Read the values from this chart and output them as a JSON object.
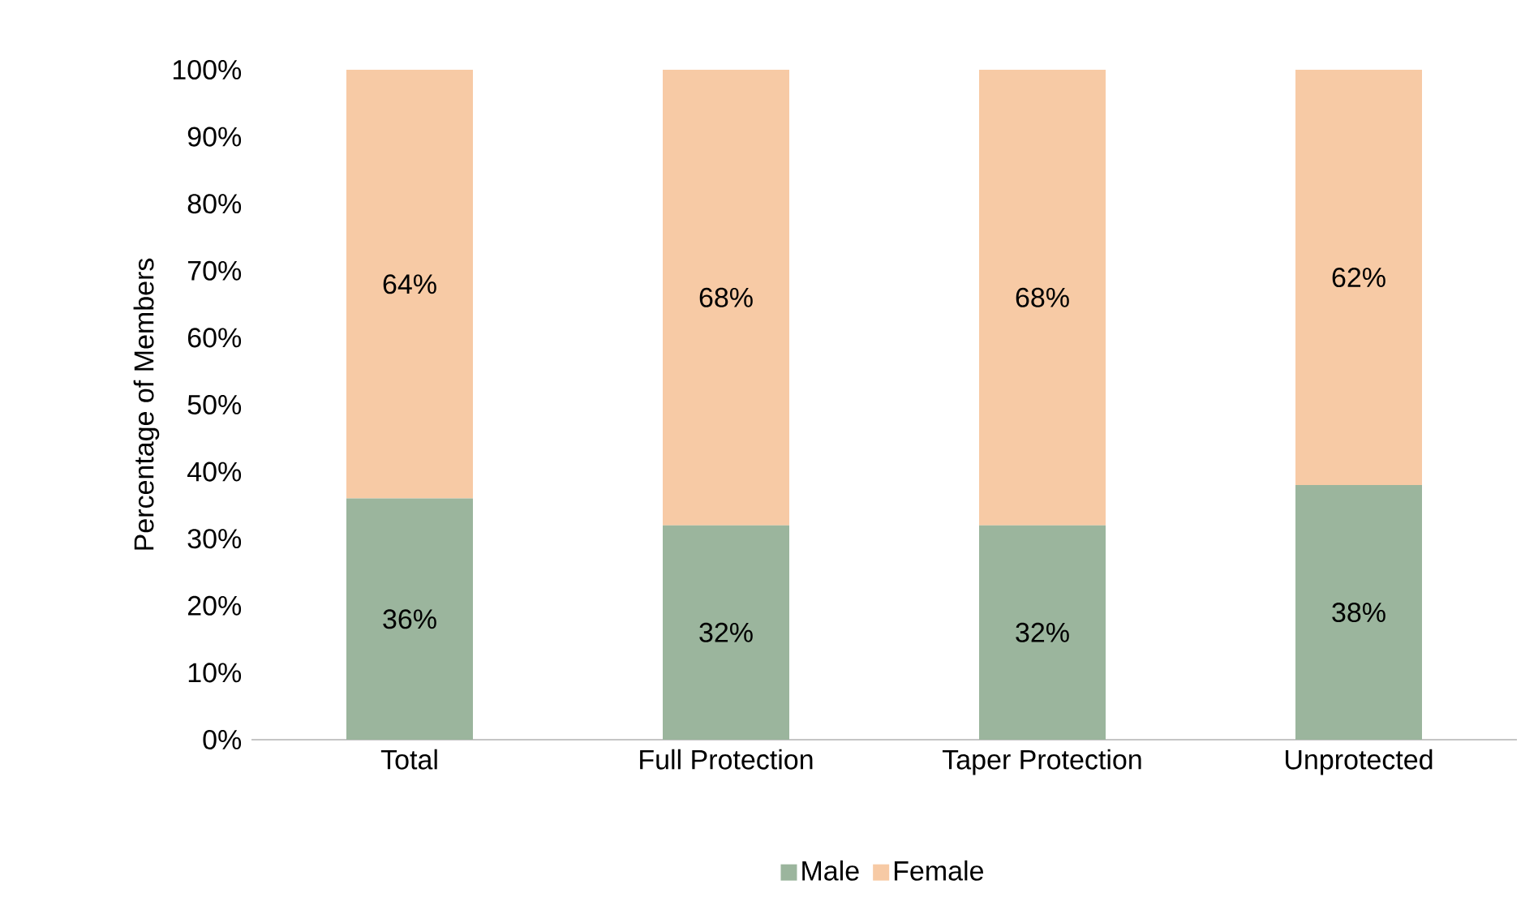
{
  "chart_data": {
    "type": "bar",
    "stacked": true,
    "ylabel": "Percentage of Members",
    "categories": [
      "Total",
      "Full Protection",
      "Taper Protection",
      "Unprotected"
    ],
    "series": [
      {
        "name": "Male",
        "color": "#9bb59d",
        "values": [
          36,
          32,
          32,
          38
        ],
        "value_labels": [
          "36%",
          "32%",
          "32%",
          "38%"
        ]
      },
      {
        "name": "Female",
        "color": "#f7caa5",
        "values": [
          64,
          68,
          68,
          62
        ],
        "value_labels": [
          "64%",
          "68%",
          "68%",
          "62%"
        ]
      }
    ],
    "ylim": [
      0,
      100
    ],
    "yticks": [
      {
        "value": 0,
        "label": "0%"
      },
      {
        "value": 10,
        "label": "10%"
      },
      {
        "value": 20,
        "label": "20%"
      },
      {
        "value": 30,
        "label": "30%"
      },
      {
        "value": 40,
        "label": "40%"
      },
      {
        "value": 50,
        "label": "50%"
      },
      {
        "value": 60,
        "label": "60%"
      },
      {
        "value": 70,
        "label": "70%"
      },
      {
        "value": 80,
        "label": "80%"
      },
      {
        "value": 90,
        "label": "90%"
      },
      {
        "value": 100,
        "label": "100%"
      }
    ],
    "legend": "bottom"
  }
}
